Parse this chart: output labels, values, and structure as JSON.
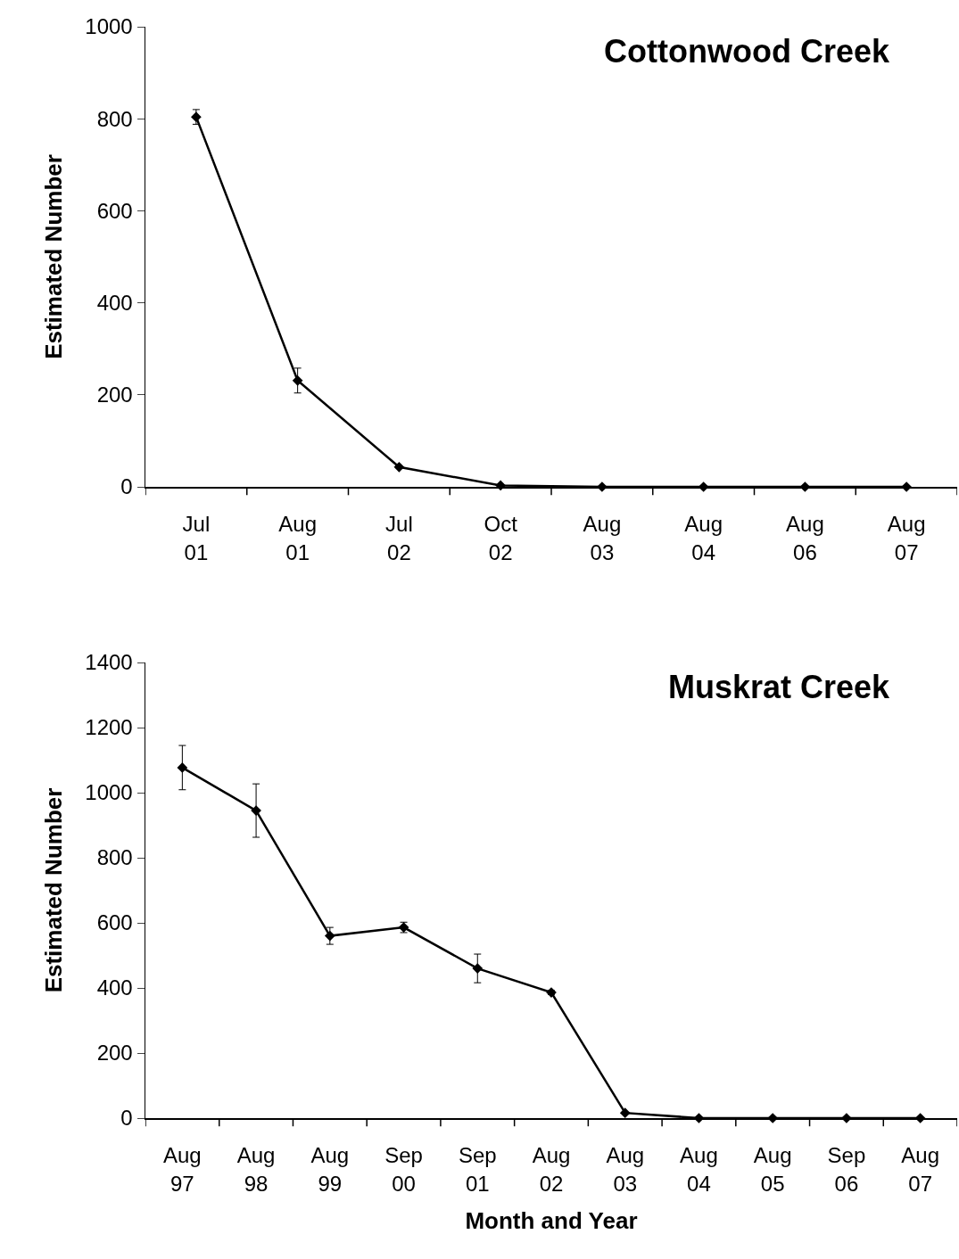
{
  "chart_data": [
    {
      "type": "line",
      "title": "Cottonwood Creek",
      "ylabel": "Estimated Number",
      "categories": [
        "Jul 01",
        "Aug 01",
        "Jul 02",
        "Oct 02",
        "Aug 03",
        "Aug 04",
        "Aug 06",
        "Aug 07"
      ],
      "series": [
        {
          "color": "#000000",
          "values": [
            804,
            231,
            43,
            3,
            0,
            0,
            0,
            0
          ],
          "errors": [
            16,
            27,
            null,
            null,
            null,
            null,
            null,
            null
          ]
        }
      ],
      "ylim": [
        0,
        1000
      ],
      "yticks": [
        0,
        200,
        400,
        600,
        800,
        1000
      ],
      "grid": false,
      "marker": "diamond",
      "line_style": "solid"
    },
    {
      "type": "line",
      "title": "Muskrat Creek",
      "xlabel": "Month and Year",
      "ylabel": "Estimated Number",
      "categories": [
        "Aug 97",
        "Aug 98",
        "Aug 99",
        "Sep 00",
        "Sep 01",
        "Aug 02",
        "Aug 03",
        "Aug 04",
        "Aug 05",
        "Sep 06",
        "Aug 07"
      ],
      "series": [
        {
          "color": "#000000",
          "values": [
            1077,
            945,
            560,
            586,
            460,
            386,
            16,
            0,
            0,
            0,
            0
          ],
          "errors": [
            68,
            82,
            26,
            16,
            44,
            6,
            null,
            null,
            null,
            null,
            null
          ]
        }
      ],
      "ylim": [
        0,
        1400
      ],
      "yticks": [
        0,
        200,
        400,
        600,
        800,
        1000,
        1200,
        1400
      ],
      "grid": false,
      "marker": "diamond",
      "line_style": "solid"
    }
  ]
}
